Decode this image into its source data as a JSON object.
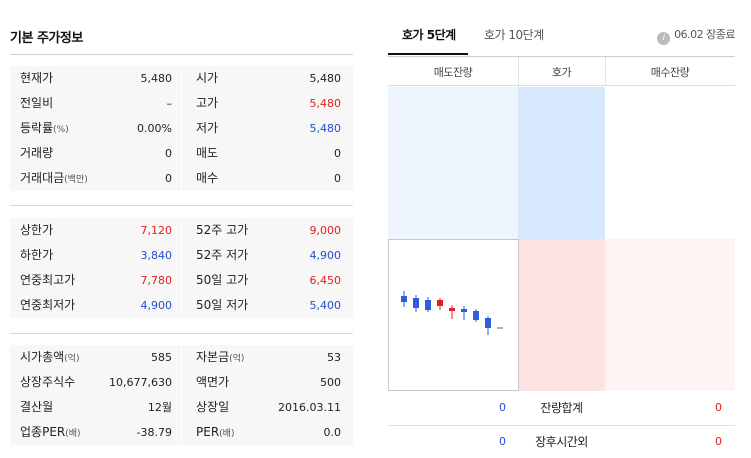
{
  "title": "기본 주가정보",
  "group1": [
    {
      "l1": "현재가",
      "u1": "",
      "v1": "5,480",
      "c1": "",
      "l2": "시가",
      "u2": "",
      "v2": "5,480",
      "c2": ""
    },
    {
      "l1": "전일비",
      "u1": "",
      "v1": "–",
      "c1": "",
      "l2": "고가",
      "u2": "",
      "v2": "5,480",
      "c2": "red"
    },
    {
      "l1": "등락률",
      "u1": "(%)",
      "v1": "0.00%",
      "c1": "",
      "l2": "저가",
      "u2": "",
      "v2": "5,480",
      "c2": "blue"
    },
    {
      "l1": "거래량",
      "u1": "",
      "v1": "0",
      "c1": "",
      "l2": "매도",
      "u2": "",
      "v2": "0",
      "c2": ""
    },
    {
      "l1": "거래대금",
      "u1": "(백만)",
      "v1": "0",
      "c1": "",
      "l2": "매수",
      "u2": "",
      "v2": "0",
      "c2": ""
    }
  ],
  "group2": [
    {
      "l1": "상한가",
      "u1": "",
      "v1": "7,120",
      "c1": "red",
      "l2": "52주 고가",
      "u2": "",
      "v2": "9,000",
      "c2": "red"
    },
    {
      "l1": "하한가",
      "u1": "",
      "v1": "3,840",
      "c1": "blue",
      "l2": "52주 저가",
      "u2": "",
      "v2": "4,900",
      "c2": "blue"
    },
    {
      "l1": "연중최고가",
      "u1": "",
      "v1": "7,780",
      "c1": "red",
      "l2": "50일 고가",
      "u2": "",
      "v2": "6,450",
      "c2": "red"
    },
    {
      "l1": "연중최저가",
      "u1": "",
      "v1": "4,900",
      "c1": "blue",
      "l2": "50일 저가",
      "u2": "",
      "v2": "5,400",
      "c2": "blue"
    }
  ],
  "group3": [
    {
      "l1": "시가총액",
      "u1": "(억)",
      "v1": "585",
      "c1": "",
      "l2": "자본금",
      "u2": "(억)",
      "v2": "53",
      "c2": ""
    },
    {
      "l1": "상장주식수",
      "u1": "",
      "v1": "10,677,630",
      "c1": "",
      "l2": "액면가",
      "u2": "",
      "v2": "500",
      "c2": ""
    },
    {
      "l1": "결산월",
      "u1": "",
      "v1": "12월",
      "c1": "",
      "l2": "상장일",
      "u2": "",
      "v2": "2016.03.11",
      "c2": ""
    },
    {
      "l1": "업종PER",
      "u1": "(배)",
      "v1": "-38.79",
      "c1": "",
      "l2": "PER",
      "u2": "(배)",
      "v2": "0.0",
      "c2": ""
    }
  ],
  "tabs": {
    "tab1": "호가 5단계",
    "tab2": "호가 10단계"
  },
  "info": {
    "icon_text": "i",
    "label": "06.02 장종료"
  },
  "orderbook": {
    "head_sell": "매도잔량",
    "head_price": "호가",
    "head_buy": "매수잔량",
    "total_label": "잔량합계",
    "total_sell": "0",
    "total_buy": "0",
    "after_label": "장후시간외",
    "after_sell": "0",
    "after_buy": "0"
  },
  "colors": {
    "red": "#e02020",
    "blue": "#2050d0"
  }
}
